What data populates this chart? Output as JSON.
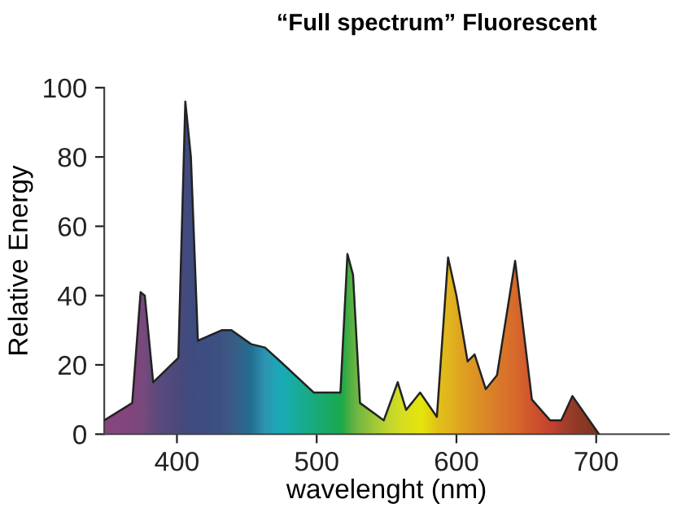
{
  "chart_data": {
    "type": "area",
    "title": "“Full spectrum” Fluorescent",
    "xlabel": "wavelenght (nm)",
    "ylabel": "Relative Energy",
    "xlim": [
      348,
      752
    ],
    "xticks": [
      400,
      500,
      600,
      700
    ],
    "ylim": [
      0,
      100
    ],
    "yticks": [
      0,
      20,
      40,
      60,
      80,
      100
    ],
    "grid": false,
    "legend": false,
    "series": [
      {
        "x": [
          348,
          368,
          374,
          377,
          383,
          401,
          406,
          410,
          415,
          432,
          439,
          453,
          463,
          474,
          498,
          517,
          522,
          526,
          531,
          548,
          558,
          564,
          574,
          586,
          594,
          600,
          608,
          613,
          621,
          629,
          642,
          654,
          667,
          675,
          683,
          702
        ],
        "values": [
          4,
          9,
          41,
          40,
          15,
          22,
          96,
          80,
          27,
          30,
          30,
          26,
          25,
          21,
          12,
          12,
          52,
          46,
          9,
          4,
          15,
          7,
          12,
          5,
          51,
          40,
          21,
          23,
          13,
          17,
          50,
          10,
          4,
          4,
          11,
          0
        ],
        "colors": [
          "#8e2a8e",
          "#82298c",
          "#7a2d8c",
          "#742e8c",
          "#5a2f8c",
          "#3d2f8a",
          "#35308c",
          "#30318f",
          "#2e3192",
          "#2e3a93",
          "#2b4496",
          "#0f5ea8",
          "#1b8fd0",
          "#00a9d6",
          "#00a88a",
          "#00a650",
          "#3aaa45",
          "#5cb344",
          "#7dbb42",
          "#c8d92e",
          "#e8e61f",
          "#f3e813",
          "#fff200",
          "#fdc20f",
          "#fbb516",
          "#f9a51a",
          "#f7941d",
          "#f58a1f",
          "#f37b21",
          "#f26b24",
          "#ee5527",
          "#e53a29",
          "#d7262c",
          "#b5202a",
          "#9a1c22",
          "#7a1416"
        ]
      }
    ]
  }
}
